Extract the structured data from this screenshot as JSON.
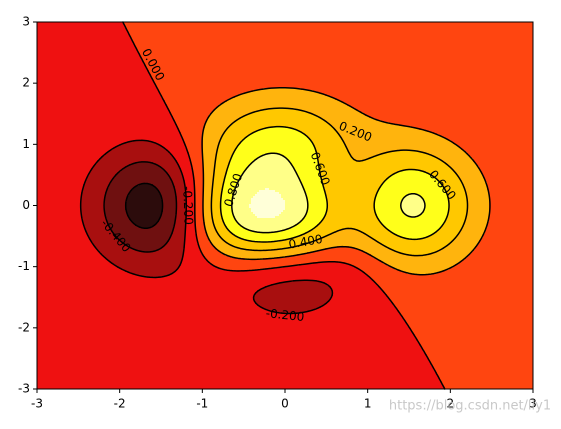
{
  "chart_data": {
    "type": "contour",
    "xlim": [
      -3,
      3
    ],
    "ylim": [
      -3,
      3
    ],
    "xticks": [
      -3,
      -2,
      -1,
      0,
      1,
      2,
      3
    ],
    "yticks": [
      -3,
      -2,
      -1,
      0,
      1,
      2,
      3
    ],
    "levels": [
      -0.6,
      {
        "value": -0.4,
        "label": "-0.400"
      },
      {
        "value": -0.2,
        "label": "-0.200"
      },
      {
        "value": 0,
        "label": "0.000"
      },
      {
        "value": 0.2,
        "label": "0.200"
      },
      {
        "value": 0.4,
        "label": "0.400"
      },
      {
        "value": 0.6,
        "label": "0.600"
      },
      {
        "value": 0.8,
        "label": "0.800"
      }
    ],
    "negative_linestyle": "dashed",
    "fill_levels": [
      -0.8,
      -0.6,
      -0.4,
      -0.2,
      0,
      0.2,
      0.4,
      0.6,
      0.8,
      1.0,
      1.2
    ],
    "colors": [
      "#2c0c0c",
      "#6f1010",
      "#a80f0f",
      "#ef1111",
      "#ff4510",
      "#ffb40d",
      "#ffc800",
      "#ffff1a",
      "#ffff88",
      "#ffffd8"
    ],
    "watermark": "https://blog.csdn.net/lly1"
  }
}
